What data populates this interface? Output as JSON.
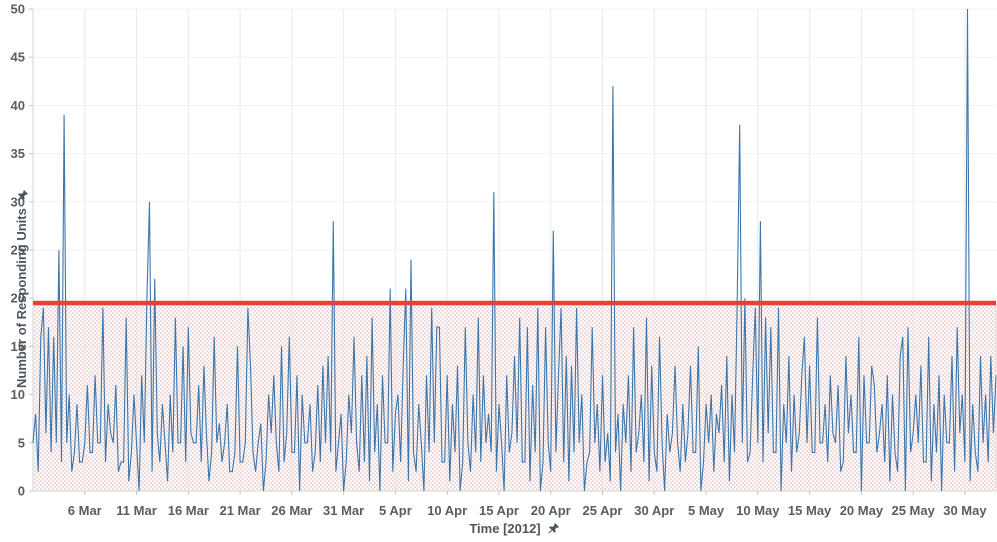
{
  "chart_data": {
    "type": "line",
    "title": "",
    "xlabel": "Time [2012]",
    "ylabel": "Number of Responding Units",
    "ylim": [
      0,
      50
    ],
    "y_ticks": [
      0,
      5,
      10,
      15,
      20,
      25,
      30,
      35,
      40,
      45,
      50
    ],
    "x_range_days": [
      0,
      93
    ],
    "x_start": "1 Mar 2012",
    "x_tick_days": [
      5,
      10,
      15,
      20,
      25,
      30,
      35,
      40,
      45,
      50,
      55,
      60,
      65,
      70,
      75,
      80,
      85,
      90
    ],
    "x_tick_labels": [
      "6 Mar",
      "11 Mar",
      "16 Mar",
      "21 Mar",
      "26 Mar",
      "31 Mar",
      "5 Apr",
      "10 Apr",
      "15 Apr",
      "20 Apr",
      "25 Apr",
      "30 Apr",
      "5 May",
      "10 May",
      "15 May",
      "20 May",
      "25 May",
      "30 May"
    ],
    "samples_per_day": 4,
    "series": [
      {
        "name": "Number of Responding Units",
        "color": "#3e76aa"
      }
    ],
    "baseline_pattern": [
      5,
      5,
      2,
      3,
      3,
      6,
      1,
      4,
      4,
      5,
      0,
      3,
      5,
      5,
      2,
      2,
      4,
      6,
      3,
      3,
      5,
      1,
      4,
      4,
      2,
      5,
      5,
      0,
      3,
      4,
      6
    ],
    "spikes": [
      [
        0.3,
        8
      ],
      [
        0.7,
        16
      ],
      [
        1.0,
        19
      ],
      [
        1.5,
        17
      ],
      [
        1.9,
        16
      ],
      [
        2.5,
        25
      ],
      [
        3.1,
        39
      ],
      [
        3.6,
        10
      ],
      [
        4.2,
        9
      ],
      [
        5.2,
        11
      ],
      [
        5.9,
        12
      ],
      [
        6.7,
        19
      ],
      [
        7.3,
        9
      ],
      [
        8.1,
        11
      ],
      [
        9.1,
        18
      ],
      [
        9.8,
        10
      ],
      [
        10.5,
        12
      ],
      [
        11.0,
        20
      ],
      [
        11.3,
        30
      ],
      [
        11.8,
        22
      ],
      [
        12.5,
        9
      ],
      [
        13.2,
        10
      ],
      [
        13.8,
        18
      ],
      [
        14.6,
        15
      ],
      [
        15.0,
        17
      ],
      [
        16.0,
        11
      ],
      [
        16.6,
        13
      ],
      [
        17.4,
        16
      ],
      [
        18.0,
        7
      ],
      [
        18.8,
        9
      ],
      [
        19.8,
        15
      ],
      [
        20.7,
        19
      ],
      [
        21.1,
        13
      ],
      [
        22.0,
        7
      ],
      [
        22.7,
        10
      ],
      [
        23.3,
        12
      ],
      [
        23.9,
        15
      ],
      [
        24.7,
        16
      ],
      [
        25.4,
        12
      ],
      [
        26.1,
        10
      ],
      [
        26.8,
        9
      ],
      [
        27.4,
        11
      ],
      [
        27.9,
        13
      ],
      [
        28.5,
        14
      ],
      [
        29.1,
        28
      ],
      [
        29.8,
        8
      ],
      [
        30.5,
        10
      ],
      [
        31.0,
        16
      ],
      [
        31.7,
        12
      ],
      [
        32.3,
        14
      ],
      [
        32.7,
        18
      ],
      [
        33.2,
        9
      ],
      [
        33.8,
        12
      ],
      [
        34.4,
        21
      ],
      [
        34.9,
        8
      ],
      [
        35.2,
        10
      ],
      [
        35.7,
        13
      ],
      [
        36.1,
        21
      ],
      [
        36.6,
        24
      ],
      [
        37.3,
        9
      ],
      [
        37.9,
        12
      ],
      [
        38.5,
        19
      ],
      [
        38.9,
        17
      ],
      [
        39.3,
        17
      ],
      [
        40.0,
        12
      ],
      [
        40.5,
        9
      ],
      [
        41.0,
        13
      ],
      [
        41.7,
        17
      ],
      [
        42.4,
        10
      ],
      [
        43.0,
        18
      ],
      [
        43.6,
        12
      ],
      [
        44.0,
        8
      ],
      [
        44.5,
        31
      ],
      [
        45.1,
        9
      ],
      [
        45.8,
        12
      ],
      [
        46.4,
        14
      ],
      [
        47.1,
        18
      ],
      [
        47.7,
        17
      ],
      [
        48.3,
        11
      ],
      [
        48.8,
        19
      ],
      [
        49.5,
        17
      ],
      [
        50.3,
        27
      ],
      [
        50.8,
        12
      ],
      [
        51.1,
        19
      ],
      [
        51.5,
        14
      ],
      [
        51.9,
        13
      ],
      [
        52.5,
        19
      ],
      [
        53.1,
        10
      ],
      [
        53.9,
        17
      ],
      [
        54.5,
        9
      ],
      [
        55.1,
        12
      ],
      [
        55.9,
        42
      ],
      [
        56.5,
        8
      ],
      [
        56.9,
        9
      ],
      [
        57.5,
        12
      ],
      [
        58.1,
        17
      ],
      [
        58.7,
        10
      ],
      [
        59.2,
        18
      ],
      [
        59.8,
        13
      ],
      [
        60.5,
        16
      ],
      [
        61.3,
        8
      ],
      [
        62.1,
        13
      ],
      [
        62.8,
        9
      ],
      [
        63.4,
        13
      ],
      [
        64.3,
        15
      ],
      [
        64.9,
        9
      ],
      [
        65.4,
        10
      ],
      [
        66.0,
        8
      ],
      [
        66.5,
        11
      ],
      [
        67.1,
        14
      ],
      [
        67.6,
        10
      ],
      [
        68.0,
        19
      ],
      [
        68.3,
        38
      ],
      [
        68.8,
        20
      ],
      [
        69.4,
        12
      ],
      [
        69.8,
        19
      ],
      [
        70.2,
        28
      ],
      [
        70.7,
        18
      ],
      [
        71.2,
        17
      ],
      [
        71.9,
        19
      ],
      [
        72.4,
        9
      ],
      [
        73.0,
        14
      ],
      [
        73.6,
        10
      ],
      [
        74.2,
        12
      ],
      [
        74.5,
        16
      ],
      [
        75.1,
        13
      ],
      [
        75.8,
        18
      ],
      [
        76.4,
        9
      ],
      [
        77.0,
        12
      ],
      [
        77.7,
        11
      ],
      [
        78.4,
        14
      ],
      [
        79.0,
        10
      ],
      [
        79.7,
        16
      ],
      [
        80.3,
        12
      ],
      [
        80.9,
        13
      ],
      [
        81.3,
        11
      ],
      [
        81.9,
        9
      ],
      [
        82.5,
        12
      ],
      [
        83.1,
        10
      ],
      [
        83.7,
        14
      ],
      [
        84.0,
        16
      ],
      [
        84.5,
        17
      ],
      [
        85.2,
        10
      ],
      [
        85.8,
        13
      ],
      [
        86.4,
        16
      ],
      [
        87.0,
        9
      ],
      [
        87.5,
        12
      ],
      [
        88.1,
        10
      ],
      [
        88.7,
        14
      ],
      [
        89.2,
        17
      ],
      [
        89.7,
        10
      ],
      [
        90.2,
        50
      ],
      [
        90.8,
        9
      ],
      [
        91.4,
        14
      ],
      [
        92.0,
        10
      ],
      [
        92.4,
        14
      ],
      [
        92.9,
        12
      ]
    ],
    "threshold_line": {
      "value": 19.5,
      "color": "#ee3d38",
      "thickness_px": 4.5
    },
    "danger_region": {
      "from": 0,
      "to": 19.5,
      "pattern": "checkerboard",
      "fill_color": "#f1dada",
      "border_color": "#f2c9c9"
    },
    "grid": {
      "horizontal": true,
      "vertical": true,
      "h_color": "#f0f0f0",
      "v_color": "#e9e9e9"
    },
    "axis_color": "#d6d6d6",
    "tick_mark_color": "#c2c6ca",
    "tick_label_color": "#565e68",
    "legend_position": "none"
  },
  "icons": {
    "y_axis_pin": "pushpin-icon",
    "x_axis_pin": "pushpin-icon",
    "pin_color": "#4b555f"
  }
}
